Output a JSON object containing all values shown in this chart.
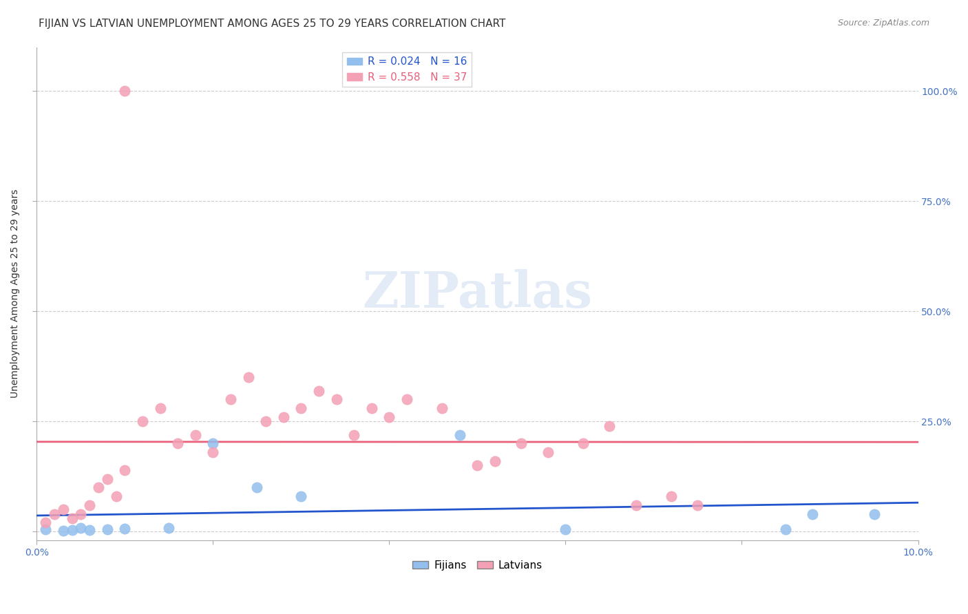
{
  "title": "FIJIAN VS LATVIAN UNEMPLOYMENT AMONG AGES 25 TO 29 YEARS CORRELATION CHART",
  "source": "Source: ZipAtlas.com",
  "xlabel": "",
  "ylabel": "Unemployment Among Ages 25 to 29 years",
  "xlim": [
    0.0,
    0.1
  ],
  "ylim": [
    -0.02,
    1.1
  ],
  "xticks": [
    0.0,
    0.02,
    0.04,
    0.06,
    0.08,
    0.1
  ],
  "xtick_labels": [
    "0.0%",
    "",
    "",
    "",
    "",
    "10.0%"
  ],
  "yticks": [
    0.0,
    0.25,
    0.5,
    0.75,
    1.0
  ],
  "ytick_labels": [
    "",
    "25.0%",
    "50.0%",
    "75.0%",
    "100.0%"
  ],
  "fijian_color": "#92BFED",
  "latvian_color": "#F4A0B5",
  "fijian_line_color": "#2255CC",
  "latvian_line_color": "#E8607A",
  "fijian_r": 0.024,
  "fijian_n": 16,
  "latvian_r": 0.558,
  "latvian_n": 37,
  "watermark": "ZIPatlas",
  "watermark_color": "#C8D8F0",
  "fijian_x": [
    0.001,
    0.003,
    0.004,
    0.005,
    0.006,
    0.008,
    0.01,
    0.015,
    0.02,
    0.025,
    0.03,
    0.048,
    0.06,
    0.085,
    0.088,
    0.095
  ],
  "fijian_y": [
    0.005,
    0.002,
    0.003,
    0.008,
    0.004,
    0.005,
    0.006,
    0.008,
    0.2,
    0.1,
    0.08,
    0.22,
    0.005,
    0.005,
    0.04,
    0.04
  ],
  "latvian_x": [
    0.001,
    0.002,
    0.003,
    0.004,
    0.005,
    0.006,
    0.007,
    0.008,
    0.009,
    0.01,
    0.012,
    0.014,
    0.016,
    0.018,
    0.02,
    0.022,
    0.024,
    0.026,
    0.028,
    0.03,
    0.032,
    0.034,
    0.036,
    0.038,
    0.04,
    0.042,
    0.046,
    0.05,
    0.052,
    0.055,
    0.058,
    0.062,
    0.065,
    0.068,
    0.072,
    0.075,
    0.01
  ],
  "latvian_y": [
    0.02,
    0.04,
    0.05,
    0.03,
    0.04,
    0.06,
    0.1,
    0.12,
    0.08,
    0.14,
    0.25,
    0.28,
    0.2,
    0.22,
    0.18,
    0.3,
    0.35,
    0.25,
    0.26,
    0.28,
    0.32,
    0.3,
    0.22,
    0.28,
    0.26,
    0.3,
    0.28,
    0.15,
    0.16,
    0.2,
    0.18,
    0.2,
    0.24,
    0.06,
    0.08,
    0.06,
    1.0
  ],
  "grid_color": "#CCCCCC",
  "axis_color": "#AAAAAA",
  "title_color": "#333333",
  "right_axis_color": "#4472C4",
  "title_fontsize": 11,
  "label_fontsize": 10,
  "tick_fontsize": 10,
  "legend_fontsize": 11
}
